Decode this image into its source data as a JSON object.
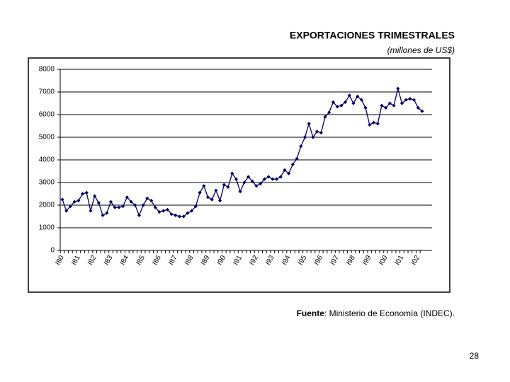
{
  "title": "EXPORTACIONES TRIMESTRALES",
  "subtitle": "(millones de US$)",
  "chart_data": {
    "type": "line",
    "categories": [
      "I80",
      null,
      null,
      null,
      "I81",
      null,
      null,
      null,
      "I82",
      null,
      null,
      null,
      "I83",
      null,
      null,
      null,
      "I84",
      null,
      null,
      null,
      "I85",
      null,
      null,
      null,
      "I86",
      null,
      null,
      null,
      "I87",
      null,
      null,
      null,
      "I88",
      null,
      null,
      null,
      "I89",
      null,
      null,
      null,
      "I90",
      null,
      null,
      null,
      "I91",
      null,
      null,
      null,
      "I92",
      null,
      null,
      null,
      "I93",
      null,
      null,
      null,
      "I94",
      null,
      null,
      null,
      "I95",
      null,
      null,
      null,
      "I96",
      null,
      null,
      null,
      "I97",
      null,
      null,
      null,
      "I98",
      null,
      null,
      null,
      "I99",
      null,
      null,
      null,
      "I00",
      null,
      null,
      null,
      "I01",
      null,
      null,
      null,
      "I02",
      null
    ],
    "values": [
      2250,
      1750,
      1950,
      2150,
      2200,
      2500,
      2550,
      1750,
      2400,
      2100,
      1550,
      1650,
      2150,
      1900,
      1900,
      1950,
      2350,
      2150,
      2000,
      1550,
      2000,
      2300,
      2200,
      1900,
      1700,
      1750,
      1800,
      1600,
      1550,
      1500,
      1500,
      1650,
      1750,
      1950,
      2550,
      2850,
      2350,
      2250,
      2650,
      2200,
      2900,
      2800,
      3400,
      3150,
      2600,
      3000,
      3250,
      3050,
      2850,
      2950,
      3150,
      3250,
      3150,
      3150,
      3250,
      3550,
      3400,
      3800,
      4050,
      4600,
      5000,
      5600,
      5000,
      5250,
      5200,
      5900,
      6100,
      6550,
      6350,
      6400,
      6550,
      6850,
      6500,
      6800,
      6650,
      6300,
      5550,
      5650,
      5600,
      6400,
      6300,
      6500,
      6400,
      7150,
      6500,
      6650,
      6700,
      6650,
      6300,
      6150
    ],
    "color": "#000066",
    "ylim": [
      0,
      8000
    ],
    "yticks": [
      0,
      1000,
      2000,
      3000,
      4000,
      5000,
      6000,
      7000,
      8000
    ],
    "grid": true
  },
  "source": {
    "label": "Fuente",
    "text": ": Ministerio de Economía (INDEC)."
  },
  "page_number": "28"
}
